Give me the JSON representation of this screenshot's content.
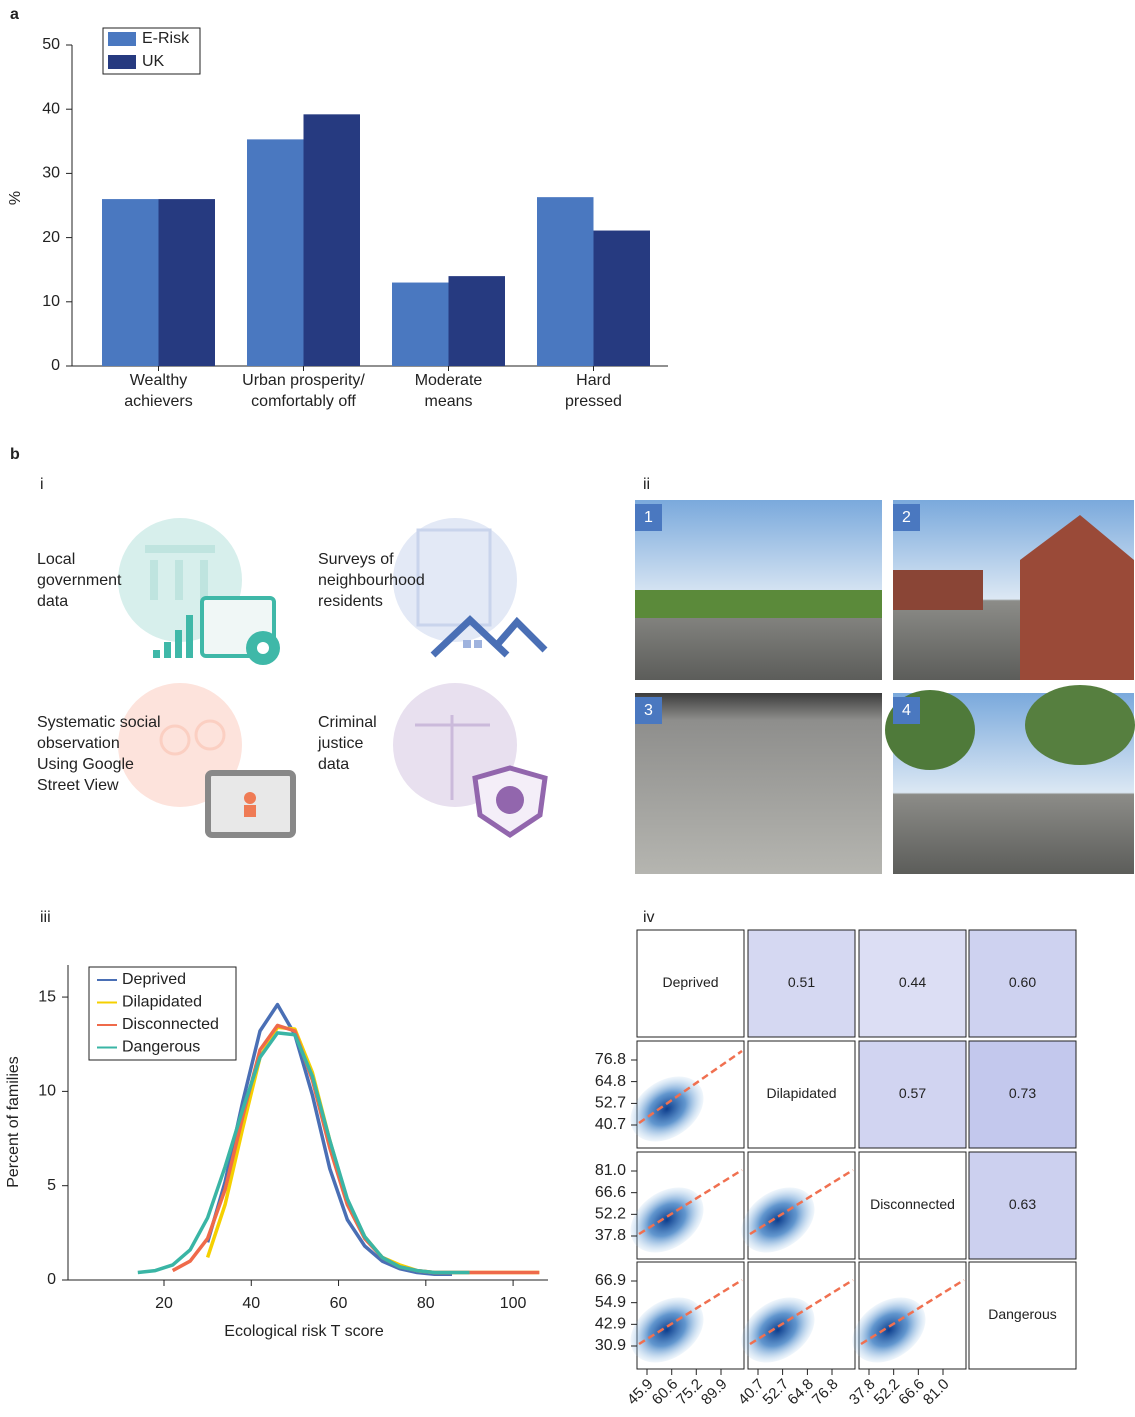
{
  "labels": {
    "a": "a",
    "b": "b",
    "i": "i",
    "ii": "ii",
    "iii": "iii",
    "iv": "iv"
  },
  "sources": [
    [
      "Local",
      "government",
      "data"
    ],
    [
      "Surveys of",
      "neighbourhood",
      "residents"
    ],
    [
      "Systematic social",
      "observation",
      "Using Google",
      "Street View"
    ],
    [
      "Criminal",
      "justice",
      "data"
    ]
  ],
  "photos": [
    "1",
    "2",
    "3",
    "4"
  ],
  "chart_data": [
    {
      "type": "bar",
      "ylabel": "%",
      "categories": [
        [
          "Wealthy",
          "achievers"
        ],
        [
          "Urban prosperity/",
          "comfortably off"
        ],
        [
          "Moderate",
          "means"
        ],
        [
          "Hard",
          "pressed"
        ]
      ],
      "series": [
        {
          "name": "E-Risk",
          "color": "#4a78c0",
          "values": [
            26,
            35.3,
            13,
            26.3
          ]
        },
        {
          "name": "UK",
          "color": "#263a80",
          "values": [
            26,
            39.2,
            14,
            21.1
          ]
        }
      ],
      "ylim": [
        0,
        50
      ],
      "yticks": [
        0,
        10,
        20,
        30,
        40,
        50
      ]
    },
    {
      "type": "line",
      "xlabel": "Ecological risk T score",
      "ylabel": "Percent of families",
      "x": [
        14,
        18,
        22,
        26,
        30,
        34,
        38,
        42,
        46,
        50,
        54,
        58,
        62,
        66,
        70,
        74,
        78,
        82,
        86,
        90,
        94,
        98,
        102,
        106
      ],
      "series": [
        {
          "name": "Deprived",
          "color": "#4a6fb5",
          "values": [
            null,
            null,
            null,
            null,
            2.0,
            5.2,
            9.4,
            13.2,
            14.6,
            13.0,
            9.8,
            5.9,
            3.2,
            1.8,
            1.0,
            0.6,
            0.4,
            0.3,
            0.3,
            null,
            null,
            null,
            null,
            null
          ]
        },
        {
          "name": "Dilapidated",
          "color": "#f5d000",
          "values": [
            null,
            null,
            null,
            null,
            1.2,
            4.0,
            8.0,
            11.8,
            13.4,
            13.3,
            11.0,
            7.4,
            4.2,
            2.3,
            1.2,
            0.8,
            0.5,
            0.4,
            0.4,
            0.4,
            0.4,
            0.4,
            0.4,
            0.4
          ]
        },
        {
          "name": "Disconnected",
          "color": "#ef6a4a",
          "values": [
            null,
            null,
            0.5,
            1.0,
            2.2,
            4.8,
            8.6,
            12.2,
            13.5,
            13.2,
            10.6,
            7.0,
            4.0,
            2.2,
            1.2,
            0.7,
            0.5,
            0.4,
            0.4,
            0.4,
            0.4,
            0.4,
            0.4,
            0.4
          ]
        },
        {
          "name": "Dangerous",
          "color": "#3ab5a5",
          "values": [
            0.4,
            0.5,
            0.8,
            1.6,
            3.3,
            6.0,
            9.0,
            11.8,
            13.1,
            13.0,
            10.8,
            7.4,
            4.3,
            2.3,
            1.2,
            0.7,
            0.5,
            0.4,
            0.4,
            0.4,
            null,
            null,
            null,
            null
          ]
        }
      ],
      "xlim": [
        -2,
        108
      ],
      "xticks": [
        20,
        40,
        60,
        80,
        100
      ],
      "ylim": [
        0,
        16.7
      ],
      "yticks": [
        0,
        5,
        10,
        15
      ]
    },
    {
      "type": "correlation_matrix",
      "color": "#4a57c8",
      "trend_color": "#f07050",
      "variables": [
        "Deprived",
        "Dilapidated",
        "Disconnected",
        "Dangerous"
      ],
      "correlations": [
        [
          0.51,
          0.44,
          0.6
        ],
        [
          0.57,
          0.73
        ],
        [
          0.63
        ]
      ],
      "correlation_labels": [
        [
          "0.51",
          "0.44",
          "0.60"
        ],
        [
          "0.57",
          "0.73"
        ],
        [
          "0.63"
        ]
      ],
      "yticks": [
        [
          76.8,
          64.8,
          52.7,
          40.7
        ],
        [
          {
            "value": 81,
            "label": "81.0"
          },
          66.6,
          52.2,
          37.8
        ],
        [
          66.9,
          54.9,
          42.9,
          30.9
        ]
      ],
      "xticks": [
        [
          45.9,
          60.6,
          75.2,
          89.9
        ],
        [
          40.7,
          52.7,
          64.8,
          76.8
        ],
        [
          37.8,
          52.2,
          66.6,
          {
            "value": 81,
            "label": "81.0"
          }
        ]
      ]
    }
  ]
}
